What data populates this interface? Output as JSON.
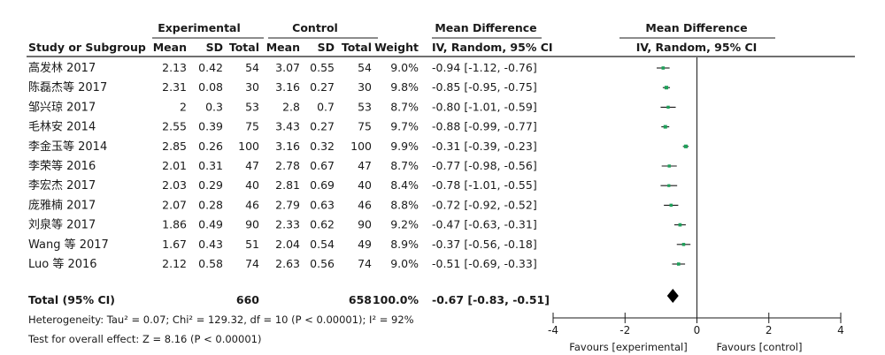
{
  "headers": {
    "experimental": "Experimental",
    "control": "Control",
    "mean_difference": "Mean Difference",
    "plot_title": "Mean Difference",
    "study_or_subgroup": "Study or Subgroup",
    "mean": "Mean",
    "sd": "SD",
    "total": "Total",
    "weight": "Weight",
    "method": "IV, Random, 95% CI",
    "plot_method": "IV, Random, 95% CI"
  },
  "total_row": {
    "label": "Total (95% CI)",
    "exp_total": "660",
    "ctl_total": "658",
    "weight": "100.0%",
    "ci_text": "-0.67 [-0.83, -0.51]"
  },
  "footnotes": {
    "heterogeneity": "Heterogeneity: Tau² = 0.07; Chi² = 129.32, df = 10 (P < 0.00001); I² = 92%",
    "overall_effect": "Test for overall effect: Z = 8.16 (P < 0.00001)"
  },
  "axis_labels": {
    "favours_left": "Favours [experimental]",
    "favours_right": "Favours [control]"
  },
  "colors": {
    "square": "#1fa05a",
    "line": "#1a1a1a",
    "diamond": "#000000"
  },
  "chart_data": {
    "type": "forest",
    "xlim": [
      -4,
      4
    ],
    "xticks": [
      -4,
      -2,
      0,
      2,
      4
    ],
    "studies": [
      {
        "study": "高发林 2017",
        "exp_mean": "2.13",
        "exp_sd": "0.42",
        "exp_total": "54",
        "ctl_mean": "3.07",
        "ctl_sd": "0.55",
        "ctl_total": "54",
        "weight": "9.0%",
        "ci_text": "-0.94 [-1.12, -0.76]",
        "md": -0.94,
        "lo": -1.12,
        "hi": -0.76
      },
      {
        "study": "陈磊杰等 2017",
        "exp_mean": "2.31",
        "exp_sd": "0.08",
        "exp_total": "30",
        "ctl_mean": "3.16",
        "ctl_sd": "0.27",
        "ctl_total": "30",
        "weight": "9.8%",
        "ci_text": "-0.85 [-0.95, -0.75]",
        "md": -0.85,
        "lo": -0.95,
        "hi": -0.75
      },
      {
        "study": "邹兴琼 2017",
        "exp_mean": "2",
        "exp_sd": "0.3",
        "exp_total": "53",
        "ctl_mean": "2.8",
        "ctl_sd": "0.7",
        "ctl_total": "53",
        "weight": "8.7%",
        "ci_text": "-0.80 [-1.01, -0.59]",
        "md": -0.8,
        "lo": -1.01,
        "hi": -0.59
      },
      {
        "study": "毛林安 2014",
        "exp_mean": "2.55",
        "exp_sd": "0.39",
        "exp_total": "75",
        "ctl_mean": "3.43",
        "ctl_sd": "0.27",
        "ctl_total": "75",
        "weight": "9.7%",
        "ci_text": "-0.88 [-0.99, -0.77]",
        "md": -0.88,
        "lo": -0.99,
        "hi": -0.77
      },
      {
        "study": "李金玉等 2014",
        "exp_mean": "2.85",
        "exp_sd": "0.26",
        "exp_total": "100",
        "ctl_mean": "3.16",
        "ctl_sd": "0.32",
        "ctl_total": "100",
        "weight": "9.9%",
        "ci_text": "-0.31 [-0.39, -0.23]",
        "md": -0.31,
        "lo": -0.39,
        "hi": -0.23
      },
      {
        "study": "李荣等 2016",
        "exp_mean": "2.01",
        "exp_sd": "0.31",
        "exp_total": "47",
        "ctl_mean": "2.78",
        "ctl_sd": "0.67",
        "ctl_total": "47",
        "weight": "8.7%",
        "ci_text": "-0.77 [-0.98, -0.56]",
        "md": -0.77,
        "lo": -0.98,
        "hi": -0.56
      },
      {
        "study": "李宏杰 2017",
        "exp_mean": "2.03",
        "exp_sd": "0.29",
        "exp_total": "40",
        "ctl_mean": "2.81",
        "ctl_sd": "0.69",
        "ctl_total": "40",
        "weight": "8.4%",
        "ci_text": "-0.78 [-1.01, -0.55]",
        "md": -0.78,
        "lo": -1.01,
        "hi": -0.55
      },
      {
        "study": "庞雅楠 2017",
        "exp_mean": "2.07",
        "exp_sd": "0.28",
        "exp_total": "46",
        "ctl_mean": "2.79",
        "ctl_sd": "0.63",
        "ctl_total": "46",
        "weight": "8.8%",
        "ci_text": "-0.72 [-0.92, -0.52]",
        "md": -0.72,
        "lo": -0.92,
        "hi": -0.52
      },
      {
        "study": "刘泉等 2017",
        "exp_mean": "1.86",
        "exp_sd": "0.49",
        "exp_total": "90",
        "ctl_mean": "2.33",
        "ctl_sd": "0.62",
        "ctl_total": "90",
        "weight": "9.2%",
        "ci_text": "-0.47 [-0.63, -0.31]",
        "md": -0.47,
        "lo": -0.63,
        "hi": -0.31
      },
      {
        "study": "Wang 等 2017",
        "exp_mean": "1.67",
        "exp_sd": "0.43",
        "exp_total": "51",
        "ctl_mean": "2.04",
        "ctl_sd": "0.54",
        "ctl_total": "49",
        "weight": "8.9%",
        "ci_text": "-0.37 [-0.56, -0.18]",
        "md": -0.37,
        "lo": -0.56,
        "hi": -0.18
      },
      {
        "study": "Luo 等 2016",
        "exp_mean": "2.12",
        "exp_sd": "0.58",
        "exp_total": "74",
        "ctl_mean": "2.63",
        "ctl_sd": "0.56",
        "ctl_total": "74",
        "weight": "9.0%",
        "ci_text": "-0.51 [-0.69, -0.33]",
        "md": -0.51,
        "lo": -0.69,
        "hi": -0.33
      }
    ],
    "pooled": {
      "md": -0.67,
      "lo": -0.83,
      "hi": -0.51
    }
  }
}
